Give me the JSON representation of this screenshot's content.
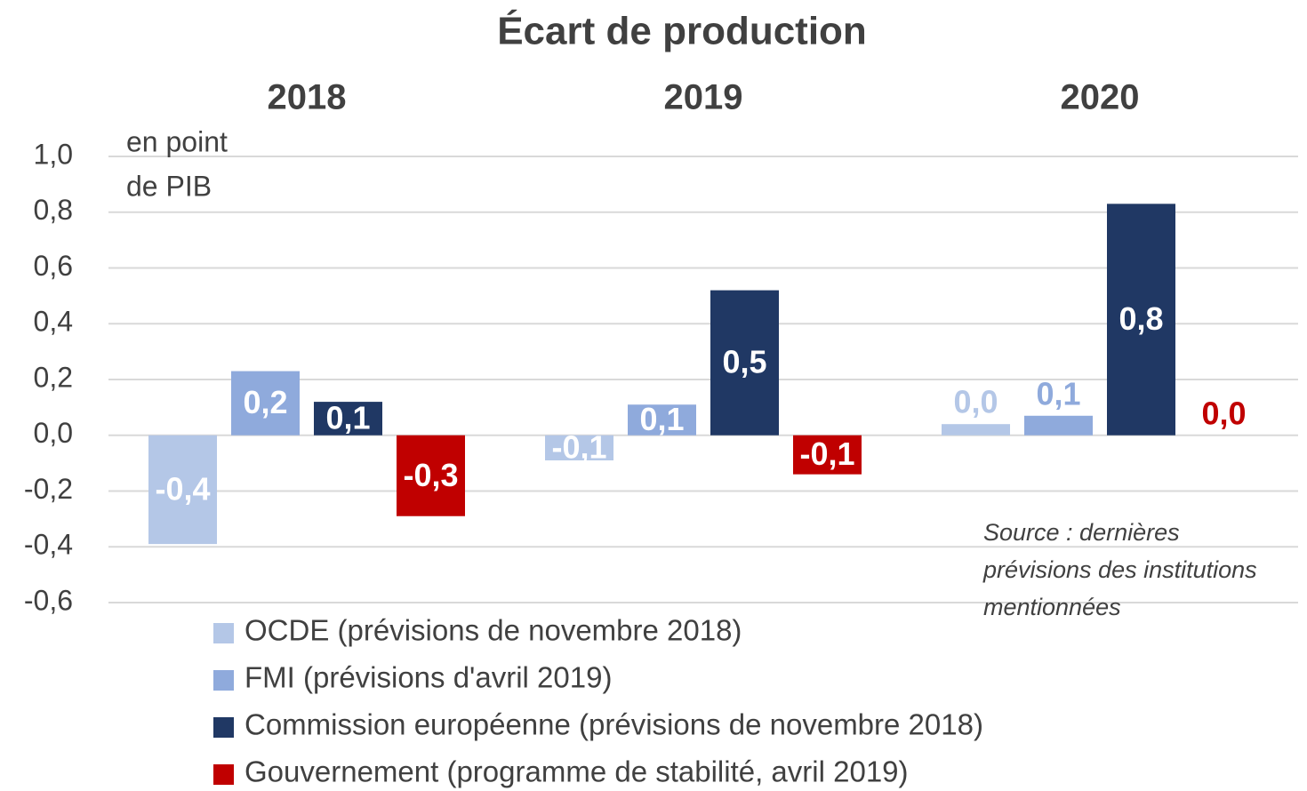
{
  "chart_data": {
    "type": "bar",
    "title": "Écart de production",
    "unit_label": [
      "en point",
      "de PIB"
    ],
    "annotation": [
      "Source : dernières",
      "prévisions des institutions",
      "mentionnées"
    ],
    "categories": [
      "2018",
      "2019",
      "2020"
    ],
    "series": [
      {
        "name": "OCDE (prévisions de novembre 2018)",
        "color": "#b4c7e7",
        "values": [
          -0.39,
          -0.09,
          0.04
        ],
        "value_labels": [
          "-0,4",
          "-0,1",
          "0,0"
        ]
      },
      {
        "name": "FMI (prévisions d'avril 2019)",
        "color": "#8faadc",
        "values": [
          0.23,
          0.11,
          0.07
        ],
        "value_labels": [
          "0,2",
          "0,1",
          "0,1"
        ]
      },
      {
        "name": "Commission européenne (prévisions de novembre 2018)",
        "color": "#203864",
        "values": [
          0.12,
          0.52,
          0.83
        ],
        "value_labels": [
          "0,1",
          "0,5",
          "0,8"
        ]
      },
      {
        "name": "Gouvernement (programme de stabilité, avril 2019)",
        "color": "#c00000",
        "values": [
          -0.29,
          -0.14,
          0.0
        ],
        "value_labels": [
          "-0,3",
          "-0,1",
          "0,0"
        ]
      }
    ],
    "ylim": [
      -0.6,
      1.0
    ],
    "yticks": [
      {
        "value": -0.6,
        "label": "-0,6"
      },
      {
        "value": -0.4,
        "label": "-0,4"
      },
      {
        "value": -0.2,
        "label": "-0,2"
      },
      {
        "value": 0.0,
        "label": "0,0"
      },
      {
        "value": 0.2,
        "label": "0,2"
      },
      {
        "value": 0.4,
        "label": "0,4"
      },
      {
        "value": 0.6,
        "label": "0,6"
      },
      {
        "value": 0.8,
        "label": "0,8"
      },
      {
        "value": 1.0,
        "label": "1,0"
      }
    ],
    "grid": true
  }
}
